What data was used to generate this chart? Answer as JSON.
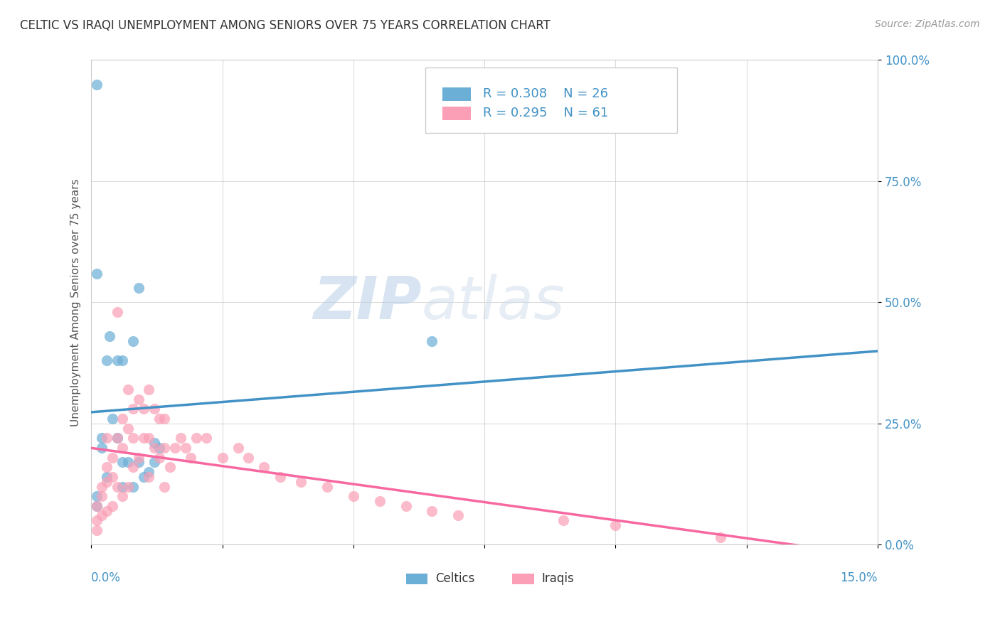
{
  "title": "CELTIC VS IRAQI UNEMPLOYMENT AMONG SENIORS OVER 75 YEARS CORRELATION CHART",
  "source": "Source: ZipAtlas.com",
  "ylabel": "Unemployment Among Seniors over 75 years",
  "ylabel_ticks": [
    "0.0%",
    "25.0%",
    "50.0%",
    "75.0%",
    "100.0%"
  ],
  "legend_celtic": "R = 0.308   N = 26",
  "legend_iraqi": "R = 0.295   N = 61",
  "watermark_zip": "ZIP",
  "watermark_atlas": "atlas",
  "celtic_color": "#6baed6",
  "iraqi_color": "#fa9fb5",
  "celtic_line_color": "#4292c6",
  "iraqi_line_color": "#f768a1",
  "xlim": [
    0.0,
    0.15
  ],
  "ylim": [
    0.0,
    1.0
  ],
  "background_color": "#ffffff",
  "grid_color": "#cccccc",
  "celtic_x": [
    0.0035,
    0.008,
    0.001,
    0.002,
    0.001,
    0.003,
    0.004,
    0.003,
    0.005,
    0.005,
    0.006,
    0.006,
    0.006,
    0.007,
    0.008,
    0.009,
    0.009,
    0.01,
    0.011,
    0.012,
    0.012,
    0.013,
    0.065,
    0.001,
    0.001,
    0.002
  ],
  "celtic_y": [
    0.43,
    0.42,
    0.56,
    0.22,
    0.95,
    0.14,
    0.26,
    0.38,
    0.22,
    0.38,
    0.38,
    0.17,
    0.12,
    0.17,
    0.12,
    0.17,
    0.53,
    0.14,
    0.15,
    0.17,
    0.21,
    0.2,
    0.42,
    0.1,
    0.08,
    0.2
  ],
  "iraqi_x": [
    0.001,
    0.001,
    0.001,
    0.002,
    0.002,
    0.002,
    0.003,
    0.003,
    0.003,
    0.003,
    0.004,
    0.004,
    0.004,
    0.005,
    0.005,
    0.005,
    0.006,
    0.006,
    0.006,
    0.007,
    0.007,
    0.007,
    0.008,
    0.008,
    0.008,
    0.009,
    0.009,
    0.01,
    0.01,
    0.011,
    0.011,
    0.011,
    0.012,
    0.012,
    0.013,
    0.013,
    0.014,
    0.014,
    0.014,
    0.015,
    0.016,
    0.017,
    0.018,
    0.019,
    0.02,
    0.022,
    0.025,
    0.028,
    0.03,
    0.033,
    0.036,
    0.04,
    0.045,
    0.05,
    0.055,
    0.06,
    0.065,
    0.07,
    0.09,
    0.1,
    0.12
  ],
  "iraqi_y": [
    0.08,
    0.05,
    0.03,
    0.12,
    0.1,
    0.06,
    0.22,
    0.16,
    0.13,
    0.07,
    0.18,
    0.14,
    0.08,
    0.48,
    0.22,
    0.12,
    0.26,
    0.2,
    0.1,
    0.32,
    0.24,
    0.12,
    0.28,
    0.22,
    0.16,
    0.3,
    0.18,
    0.28,
    0.22,
    0.32,
    0.22,
    0.14,
    0.28,
    0.2,
    0.26,
    0.18,
    0.26,
    0.2,
    0.12,
    0.16,
    0.2,
    0.22,
    0.2,
    0.18,
    0.22,
    0.22,
    0.18,
    0.2,
    0.18,
    0.16,
    0.14,
    0.13,
    0.12,
    0.1,
    0.09,
    0.08,
    0.07,
    0.06,
    0.05,
    0.04,
    0.015
  ]
}
